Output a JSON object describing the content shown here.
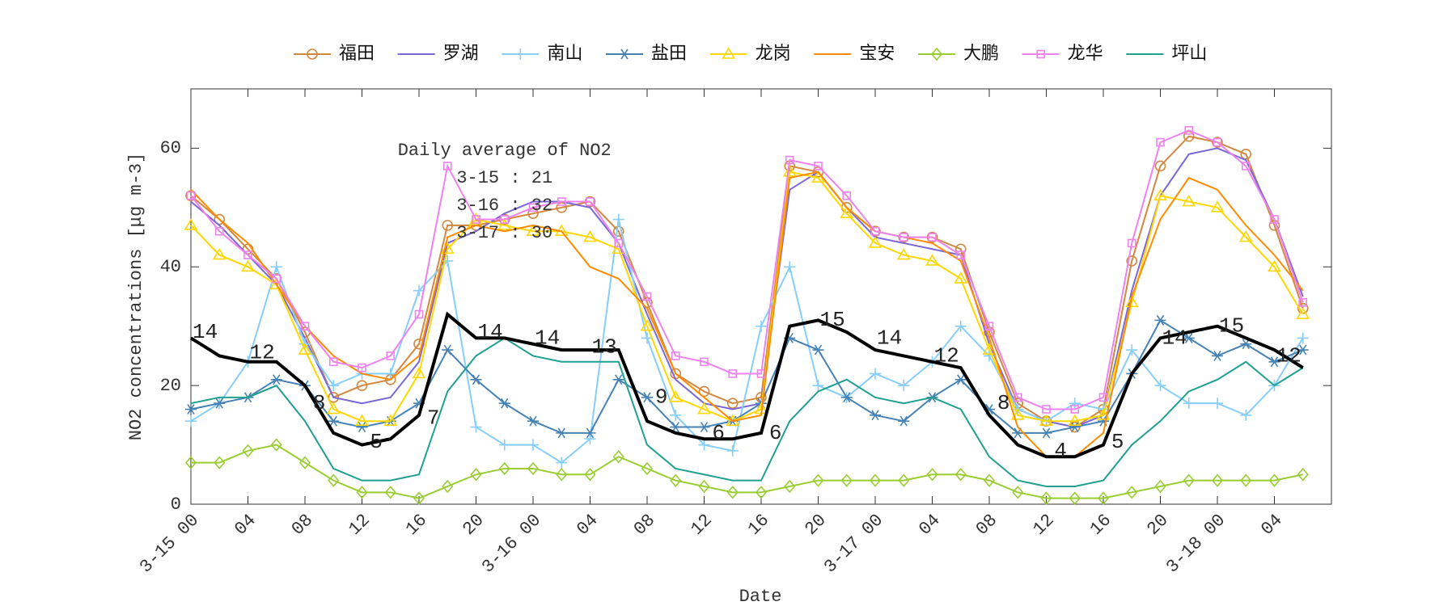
{
  "chart_data": {
    "type": "line",
    "x_label": "Date",
    "y_label": "NO2 concentrations [μg m-3]",
    "xlim": [
      0,
      80
    ],
    "ylim": [
      0,
      70
    ],
    "xticks": [
      {
        "value": 0,
        "label": "3-15 00"
      },
      {
        "value": 4,
        "label": "04"
      },
      {
        "value": 8,
        "label": "08"
      },
      {
        "value": 12,
        "label": "12"
      },
      {
        "value": 16,
        "label": "16"
      },
      {
        "value": 20,
        "label": "20"
      },
      {
        "value": 24,
        "label": "3-16 00"
      },
      {
        "value": 28,
        "label": "04"
      },
      {
        "value": 32,
        "label": "08"
      },
      {
        "value": 36,
        "label": "12"
      },
      {
        "value": 40,
        "label": "16"
      },
      {
        "value": 44,
        "label": "20"
      },
      {
        "value": 48,
        "label": "3-17 00"
      },
      {
        "value": 52,
        "label": "04"
      },
      {
        "value": 56,
        "label": "08"
      },
      {
        "value": 60,
        "label": "12"
      },
      {
        "value": 64,
        "label": "16"
      },
      {
        "value": 68,
        "label": "20"
      },
      {
        "value": 72,
        "label": "3-18 00"
      },
      {
        "value": 76,
        "label": "04"
      }
    ],
    "yticks": [
      0,
      20,
      40,
      60
    ],
    "x": [
      0,
      2,
      4,
      6,
      8,
      10,
      12,
      14,
      16,
      18,
      20,
      22,
      24,
      26,
      28,
      30,
      32,
      34,
      36,
      38,
      40,
      42,
      44,
      46,
      48,
      50,
      52,
      54,
      56,
      58,
      60,
      62,
      64,
      66,
      68,
      70,
      72,
      74,
      76,
      78
    ],
    "series": [
      {
        "name": "福田",
        "color": "#d2883f",
        "marker": "circle",
        "values": [
          52,
          48,
          43,
          38,
          29,
          18,
          20,
          21,
          27,
          47,
          47,
          48,
          49,
          50,
          51,
          46,
          34,
          22,
          19,
          17,
          18,
          57,
          56,
          50,
          46,
          45,
          45,
          43,
          29,
          17,
          14,
          13,
          16,
          41,
          57,
          62,
          61,
          59,
          47,
          33
        ]
      },
      {
        "name": "罗湖",
        "color": "#7b68d6",
        "marker": "none",
        "values": [
          51,
          47,
          42,
          37,
          28,
          18,
          17,
          18,
          24,
          44,
          46,
          49,
          51,
          51,
          50,
          44,
          32,
          21,
          17,
          16,
          17,
          53,
          56,
          50,
          45,
          44,
          43,
          42,
          27,
          16,
          14,
          13,
          15,
          36,
          52,
          59,
          60,
          58,
          48,
          35
        ]
      },
      {
        "name": "南山",
        "color": "#87cefa",
        "marker": "plus",
        "values": [
          14,
          17,
          24,
          40,
          27,
          20,
          22,
          22,
          36,
          41,
          13,
          10,
          10,
          7,
          11,
          48,
          28,
          15,
          10,
          9,
          30,
          40,
          20,
          18,
          22,
          20,
          24,
          30,
          25,
          16,
          14,
          17,
          16,
          26,
          20,
          17,
          17,
          15,
          20,
          28
        ]
      },
      {
        "name": "盐田",
        "color": "#4682b4",
        "marker": "asterisk",
        "values": [
          16,
          17,
          18,
          21,
          20,
          14,
          13,
          14,
          17,
          26,
          21,
          17,
          14,
          12,
          12,
          21,
          18,
          13,
          13,
          14,
          17,
          28,
          26,
          18,
          15,
          14,
          18,
          21,
          16,
          12,
          12,
          13,
          14,
          22,
          31,
          28,
          25,
          27,
          24,
          26
        ]
      },
      {
        "name": "龙岗",
        "color": "#ffd700",
        "marker": "triangle",
        "values": [
          47,
          42,
          40,
          37,
          26,
          16,
          14,
          14,
          22,
          43,
          48,
          47,
          46,
          46,
          45,
          43,
          30,
          18,
          16,
          14,
          16,
          56,
          55,
          49,
          44,
          42,
          41,
          38,
          26,
          15,
          14,
          14,
          15,
          34,
          52,
          51,
          50,
          45,
          40,
          32
        ]
      },
      {
        "name": "宝安",
        "color": "#ff8c00",
        "marker": "none",
        "values": [
          53,
          48,
          44,
          37,
          30,
          25,
          22,
          21,
          25,
          45,
          47,
          46,
          47,
          46,
          40,
          38,
          33,
          22,
          18,
          14,
          15,
          55,
          56,
          50,
          46,
          45,
          44,
          41,
          28,
          13,
          8,
          8,
          12,
          35,
          48,
          55,
          53,
          47,
          42,
          36
        ]
      },
      {
        "name": "大鹏",
        "color": "#9acd32",
        "marker": "diamond",
        "values": [
          7,
          7,
          9,
          10,
          7,
          4,
          2,
          2,
          1,
          3,
          5,
          6,
          6,
          5,
          5,
          8,
          6,
          4,
          3,
          2,
          2,
          3,
          4,
          4,
          4,
          4,
          5,
          5,
          4,
          2,
          1,
          1,
          1,
          2,
          3,
          4,
          4,
          4,
          4,
          5
        ]
      },
      {
        "name": "龙华",
        "color": "#ee82ee",
        "marker": "square",
        "values": [
          52,
          46,
          42,
          38,
          30,
          24,
          23,
          25,
          32,
          57,
          48,
          48,
          50,
          51,
          51,
          44,
          35,
          25,
          24,
          22,
          22,
          58,
          57,
          52,
          46,
          45,
          45,
          42,
          30,
          18,
          16,
          16,
          18,
          44,
          61,
          63,
          61,
          57,
          48,
          34
        ]
      },
      {
        "name": "坪山",
        "color": "#20a090",
        "marker": "none",
        "values": [
          17,
          18,
          18,
          20,
          14,
          6,
          4,
          4,
          5,
          19,
          25,
          28,
          25,
          24,
          24,
          24,
          10,
          6,
          5,
          4,
          4,
          14,
          19,
          21,
          18,
          17,
          18,
          16,
          8,
          4,
          3,
          3,
          4,
          10,
          14,
          19,
          21,
          24,
          20,
          23
        ]
      }
    ],
    "average": {
      "color": "#000000",
      "values": [
        28,
        25,
        24,
        24,
        20,
        12,
        10,
        11,
        15,
        32,
        28,
        28,
        27,
        26,
        26,
        26,
        14,
        12,
        11,
        11,
        12,
        30,
        31,
        29,
        26,
        25,
        24,
        23,
        15,
        10,
        8,
        8,
        10,
        22,
        28,
        29,
        30,
        28,
        26,
        23
      ]
    },
    "annotations": [
      {
        "text": "14",
        "x": 1,
        "y": 29
      },
      {
        "text": "12",
        "x": 5,
        "y": 25.5
      },
      {
        "text": "8",
        "x": 9,
        "y": 17
      },
      {
        "text": "5",
        "x": 13,
        "y": 10.5
      },
      {
        "text": "7",
        "x": 17,
        "y": 14.5
      },
      {
        "text": "14",
        "x": 21,
        "y": 29
      },
      {
        "text": "14",
        "x": 25,
        "y": 28
      },
      {
        "text": "13",
        "x": 29,
        "y": 26.5
      },
      {
        "text": "9",
        "x": 33,
        "y": 18
      },
      {
        "text": "6",
        "x": 37,
        "y": 12
      },
      {
        "text": "6",
        "x": 41,
        "y": 12
      },
      {
        "text": "15",
        "x": 45,
        "y": 31
      },
      {
        "text": "14",
        "x": 49,
        "y": 28
      },
      {
        "text": "12",
        "x": 53,
        "y": 25
      },
      {
        "text": "8",
        "x": 57,
        "y": 17
      },
      {
        "text": "4",
        "x": 61,
        "y": 9
      },
      {
        "text": "5",
        "x": 65,
        "y": 10.5
      },
      {
        "text": "14",
        "x": 69,
        "y": 28
      },
      {
        "text": "15",
        "x": 73,
        "y": 30
      },
      {
        "text": "12",
        "x": 77,
        "y": 25
      }
    ],
    "daily_average": {
      "title": "Daily average of NO2",
      "lines": [
        "3-15 : 21",
        "3-16 : 32",
        "3-17 : 30"
      ]
    }
  }
}
